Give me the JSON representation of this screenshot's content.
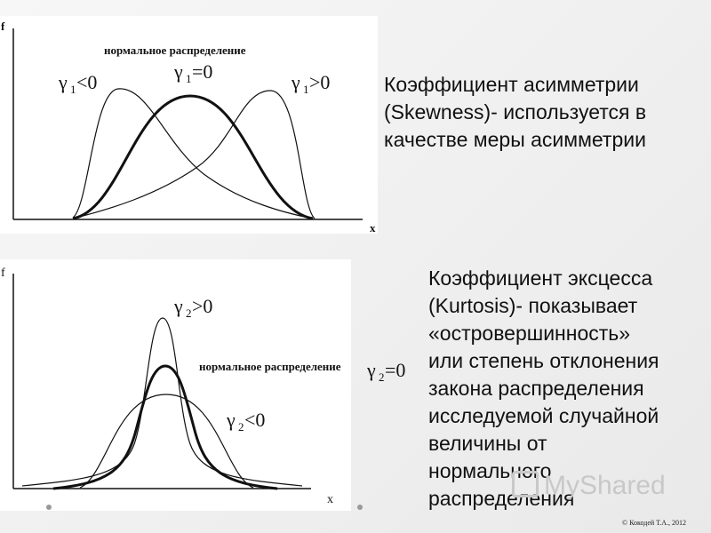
{
  "top_diagram": {
    "y_axis": "f",
    "x_axis": "x",
    "normal_label": "нормальное распределение",
    "gamma_left": {
      "sym": "γ",
      "sub": "1",
      "rel": "<0"
    },
    "gamma_mid": {
      "sym": "γ",
      "sub": "1",
      "rel": "=0"
    },
    "gamma_right": {
      "sym": "γ",
      "sub": "1",
      "rel": ">0"
    }
  },
  "bottom_diagram": {
    "y_axis": "f",
    "x_axis": "x",
    "normal_label": "нормальное распределение",
    "gamma_top": {
      "sym": "γ",
      "sub": "2",
      "rel": ">0"
    },
    "gamma_mid": {
      "sym": "γ",
      "sub": "2",
      "rel": "=0"
    },
    "gamma_low": {
      "sym": "γ",
      "sub": "2",
      "rel": "<0"
    }
  },
  "skewness_text": [
    "Коэффициент асимметрии",
    "(Skewness)- используется в",
    "качестве меры асимметрии"
  ],
  "kurtosis_text": [
    "Коэффициент эксцесса",
    "(Kurtosis)- показывает",
    "«островершинность»",
    "или степень отклонения",
    "закона распределения",
    "исследуемой случайной",
    "величины от",
    "нормального",
    "распределения"
  ],
  "watermark": "MyShared",
  "copyright": "© Кокодей Т.А., 2012"
}
